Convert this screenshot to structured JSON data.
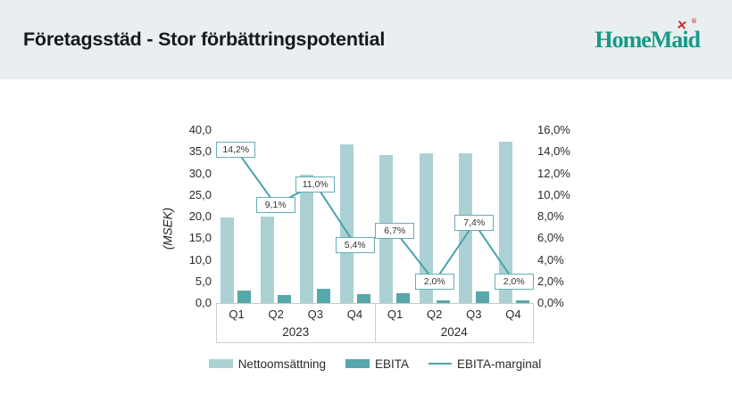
{
  "header": {
    "title": "Företagsstäd - Stor förbättringspotential",
    "logo": {
      "text": "HomeMaid",
      "mark": "✕",
      "registered": "®"
    }
  },
  "chart_data": {
    "type": "combo",
    "title": "Företagsstäd - Stor förbättringspotential",
    "categories": [
      "Q1",
      "Q2",
      "Q3",
      "Q4",
      "Q1",
      "Q2",
      "Q3",
      "Q4"
    ],
    "year_groups": [
      {
        "label": "2023",
        "span": 4
      },
      {
        "label": "2024",
        "span": 4
      }
    ],
    "series": [
      {
        "name": "Nettoomsättning",
        "type": "bar",
        "axis": "left",
        "color": "#abd1d4",
        "values": [
          19.8,
          20.1,
          29.7,
          36.8,
          34.2,
          34.7,
          34.6,
          37.4
        ]
      },
      {
        "name": "EBITA",
        "type": "bar",
        "axis": "left",
        "color": "#57a7ab",
        "values": [
          2.8,
          1.8,
          3.3,
          2.0,
          2.3,
          0.7,
          2.6,
          0.7
        ]
      },
      {
        "name": "EBITA-marginal",
        "type": "line",
        "axis": "right",
        "color": "#4ba2aa",
        "values": [
          14.2,
          9.1,
          11.0,
          5.4,
          6.7,
          2.0,
          7.4,
          2.0
        ],
        "value_labels": [
          "14,2%",
          "9,1%",
          "11,0%",
          "5,4%",
          "6,7%",
          "2,0%",
          "7,4%",
          "2,0%"
        ]
      }
    ],
    "left_axis": {
      "label": "(MSEK)",
      "min": 0,
      "max": 40,
      "step": 5,
      "tick_labels": [
        "40,0",
        "35,0",
        "30,0",
        "25,0",
        "20,0",
        "15,0",
        "10,0",
        "5,0",
        "0,0"
      ]
    },
    "right_axis": {
      "min": 0,
      "max": 16,
      "step": 2,
      "tick_labels": [
        "16,0%",
        "14,0%",
        "12,0%",
        "10,0%",
        "8,0%",
        "6,0%",
        "4,0%",
        "2,0%",
        "0,0%"
      ]
    },
    "legend_position": "bottom",
    "grid": "off"
  }
}
